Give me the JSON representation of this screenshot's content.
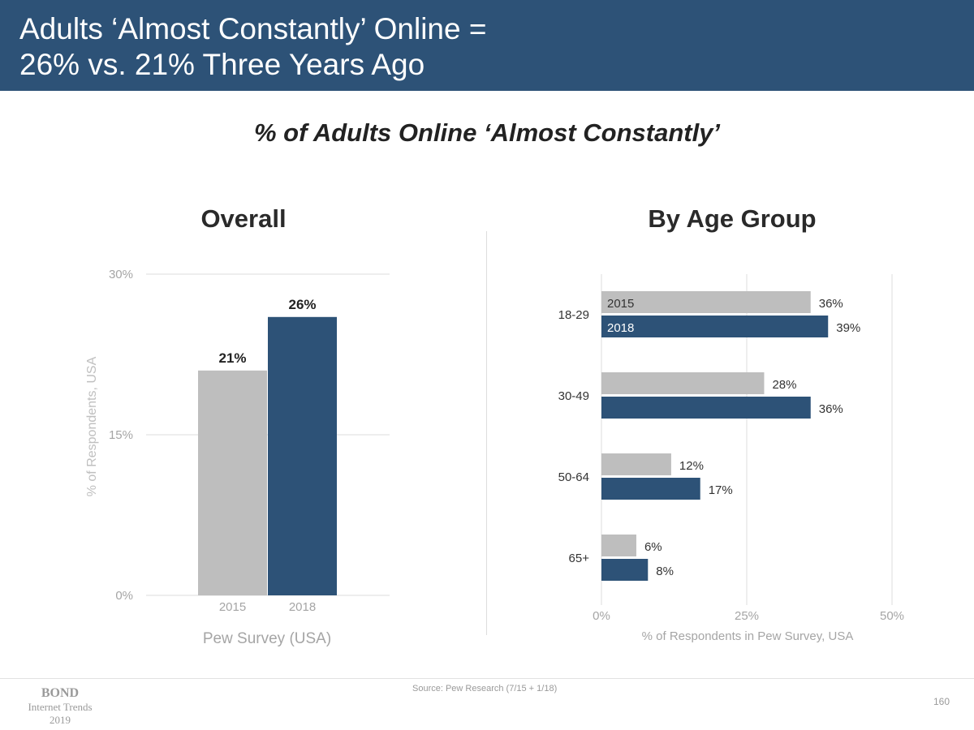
{
  "header": {
    "title_line1": "Adults ‘Almost Constantly’ Online =",
    "title_line2": "26% vs. 21% Three Years Ago"
  },
  "subtitle": "% of Adults Online ‘Almost Constantly’",
  "colors": {
    "header_bg": "#2d5277",
    "series_2015": "#bebebe",
    "series_2018": "#2d5277"
  },
  "chart_data": [
    {
      "type": "bar",
      "title": "Overall",
      "categories": [
        "2015",
        "2018"
      ],
      "values": [
        21,
        26
      ],
      "data_labels": [
        "21%",
        "26%"
      ],
      "ylabel": "% of Respondents, USA",
      "xlabel": "Pew Survey (USA)",
      "ylim": [
        0,
        30
      ],
      "yticks": [
        0,
        15,
        30
      ],
      "ytick_labels": [
        "0%",
        "15%",
        "30%"
      ],
      "grid": true
    },
    {
      "type": "bar",
      "orientation": "horizontal",
      "title": "By Age Group",
      "categories": [
        "18-29",
        "30-49",
        "50-64",
        "65+"
      ],
      "series": [
        {
          "name": "2015",
          "values": [
            36,
            28,
            12,
            6
          ],
          "labels": [
            "36%",
            "28%",
            "12%",
            "6%"
          ]
        },
        {
          "name": "2018",
          "values": [
            39,
            36,
            17,
            8
          ],
          "labels": [
            "39%",
            "36%",
            "17%",
            "8%"
          ]
        }
      ],
      "xlabel": "% of Respondents in Pew Survey, USA",
      "xlim": [
        0,
        50
      ],
      "xticks": [
        0,
        25,
        50
      ],
      "xtick_labels": [
        "0%",
        "25%",
        "50%"
      ],
      "grid": true
    }
  ],
  "footer": {
    "brand": "BOND",
    "brand_sub": "Internet Trends",
    "year": "2019",
    "source": "Source: Pew Research (7/15 + 1/18)",
    "page_number": "160"
  }
}
